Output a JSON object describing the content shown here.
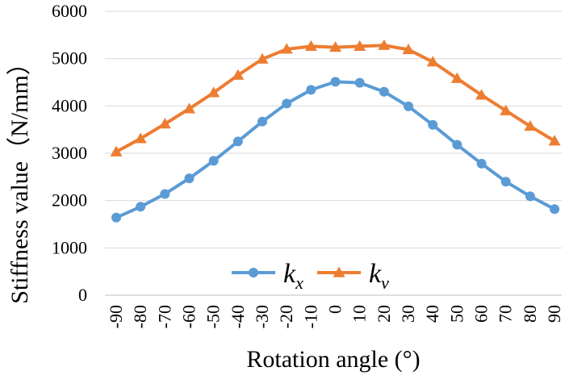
{
  "chart_data": {
    "type": "line",
    "xlabel": "Rotation angle (°)",
    "ylabel": "Stiffness value（N/mm）",
    "categories": [
      "-90",
      "-80",
      "-70",
      "-60",
      "-50",
      "-40",
      "-30",
      "-20",
      "-10",
      "0",
      "10",
      "20",
      "30",
      "40",
      "50",
      "60",
      "70",
      "80",
      "90"
    ],
    "ylim": [
      0,
      6000
    ],
    "yticks": [
      0,
      1000,
      2000,
      3000,
      4000,
      5000,
      6000
    ],
    "grid": true,
    "legend": "bottom-center",
    "series": [
      {
        "name_main": "k",
        "name_sub": "x",
        "color": "#5b9bd5",
        "marker": "circle",
        "values": [
          1640,
          1870,
          2140,
          2470,
          2840,
          3250,
          3670,
          4050,
          4340,
          4510,
          4490,
          4300,
          3990,
          3600,
          3180,
          2780,
          2400,
          2090,
          1820
        ]
      },
      {
        "name_main": "k",
        "name_sub": "v",
        "color": "#ed7d31",
        "marker": "triangle",
        "values": [
          3030,
          3310,
          3620,
          3940,
          4280,
          4650,
          4990,
          5200,
          5260,
          5240,
          5260,
          5280,
          5190,
          4930,
          4580,
          4230,
          3900,
          3570,
          3260
        ]
      }
    ]
  }
}
